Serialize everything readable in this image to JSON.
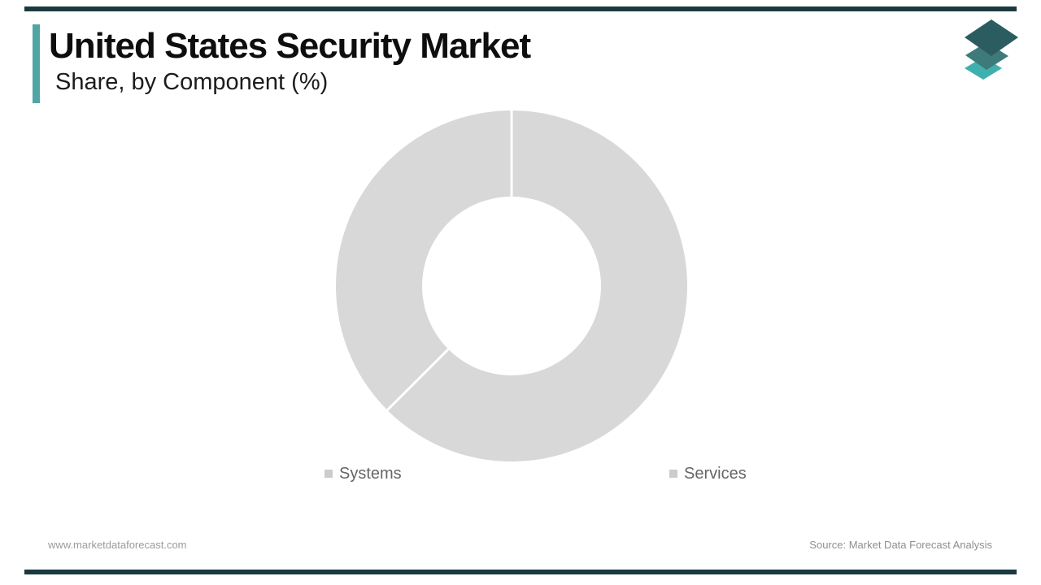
{
  "theme": {
    "frame_bar_color": "#1b3a40",
    "accent_bar_color": "#4fa6a4",
    "background": "#ffffff",
    "title_color": "#0e0e0e",
    "legend_text_color": "#666666",
    "footer_text_color": "#9b9b9b"
  },
  "header": {
    "title": "United States Security Market",
    "subtitle": "Share, by Component (%)"
  },
  "logo": {
    "name": "market-data-forecast-logo",
    "layer_colors": [
      "#40b0af",
      "#3f7a7a",
      "#2b5d60"
    ]
  },
  "chart_data": {
    "type": "pie",
    "subtype": "donut",
    "categories": [
      "Systems",
      "Services"
    ],
    "values": [
      62.5,
      37.5
    ],
    "title": "United States Security Market",
    "subtitle": "Share, by Component (%)",
    "slice_color": "#d8d8d8",
    "divider_color": "#ffffff",
    "donut_hole_ratio": 0.51,
    "start_angle_deg": 0,
    "direction": "clockwise",
    "legend_position": "bottom",
    "data_labels": "none"
  },
  "legend": {
    "items": [
      {
        "label": "Systems",
        "marker_color": "#cccccc"
      },
      {
        "label": "Services",
        "marker_color": "#cccccc"
      }
    ]
  },
  "footer": {
    "website": "www.marketdataforecast.com",
    "source": "Source: Market Data Forecast Analysis"
  }
}
